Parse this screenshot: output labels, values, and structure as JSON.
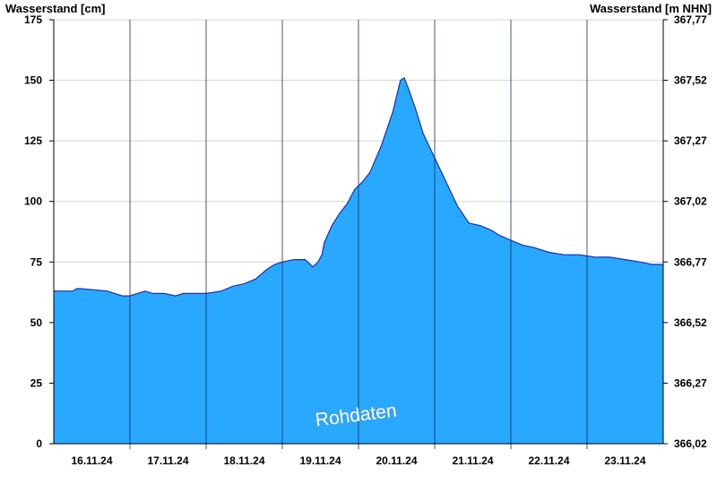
{
  "chart_data": {
    "type": "area",
    "ylabel": "Wasserstand [cm]",
    "ylabel_right": "Wasserstand [m NHN]",
    "watermark": "Rohdaten",
    "ylim": [
      0,
      175
    ],
    "yticks": [
      0,
      25,
      50,
      75,
      100,
      125,
      150,
      175
    ],
    "yticks_right": [
      "366,02",
      "366,27",
      "366,52",
      "366,77",
      "367,02",
      "367,27",
      "367,52",
      "367,77"
    ],
    "xlim_days": [
      0,
      8
    ],
    "xticks": [
      "16.11.24",
      "17.11.24",
      "18.11.24",
      "19.11.24",
      "20.11.24",
      "21.11.24",
      "22.11.24",
      "23.11.24"
    ],
    "fill_color": "#29a8ff",
    "line_color": "#1f2fa8",
    "grid": true,
    "series": [
      {
        "x": [
          0.0,
          0.25,
          0.3,
          0.35,
          0.7,
          0.8,
          0.9,
          1.0,
          1.2,
          1.3,
          1.45,
          1.6,
          1.7,
          1.8,
          1.9,
          1.95,
          2.0,
          2.2,
          2.35,
          2.5,
          2.65,
          2.8,
          2.9,
          3.0,
          3.15,
          3.3,
          3.4,
          3.47,
          3.52,
          3.55,
          3.65,
          3.75,
          3.85,
          3.95,
          4.05,
          4.15,
          4.3,
          4.45,
          4.55,
          4.6,
          4.65,
          4.75,
          4.85,
          5.0,
          5.15,
          5.3,
          5.45,
          5.6,
          5.75,
          5.85,
          6.0,
          6.15,
          6.3,
          6.5,
          6.7,
          6.9,
          7.1,
          7.3,
          7.5,
          7.7,
          7.85,
          8.0
        ],
        "y": [
          63,
          63,
          64,
          64,
          63,
          62,
          61,
          61,
          63,
          62,
          62,
          61,
          62,
          62,
          62,
          62,
          62,
          63,
          65,
          66,
          68,
          72,
          74,
          75,
          76,
          76,
          73,
          75,
          78,
          83,
          90,
          95,
          99,
          105,
          108,
          112,
          123,
          137,
          150,
          151,
          147,
          138,
          128,
          118,
          108,
          98,
          91,
          90,
          88,
          86,
          84,
          82,
          81,
          79,
          78,
          78,
          77,
          77,
          76,
          75,
          74,
          74
        ]
      }
    ]
  }
}
